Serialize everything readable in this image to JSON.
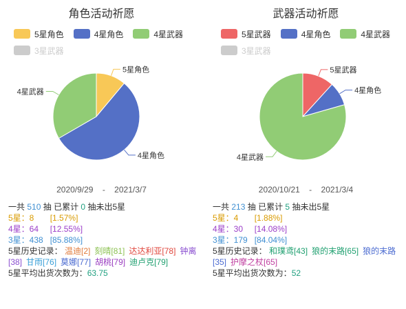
{
  "colors": {
    "five_char": "#f8c857",
    "four_char": "#5470c6",
    "four_weapon": "#91cc75",
    "five_weapon": "#ee6666",
    "three_star": "#cccccc"
  },
  "chart_data": [
    {
      "type": "pie",
      "title": "角色活动祈愿",
      "legend": [
        "5星角色",
        "4星角色",
        "4星武器",
        "3星武器"
      ],
      "legend_disabled": [
        "3星武器"
      ],
      "legend_placement": "top",
      "series": [
        {
          "name": "5星角色",
          "value": 8,
          "color_key": "five_char"
        },
        {
          "name": "4星角色",
          "value": 40,
          "color_key": "four_char"
        },
        {
          "name": "4星武器",
          "value": 24,
          "color_key": "four_weapon"
        }
      ]
    },
    {
      "type": "pie",
      "title": "武器活动祈愿",
      "legend": [
        "5星武器",
        "4星角色",
        "4星武器",
        "3星武器"
      ],
      "legend_disabled": [
        "3星武器"
      ],
      "legend_placement": "top",
      "series": [
        {
          "name": "5星武器",
          "value": 4,
          "color_key": "five_weapon"
        },
        {
          "name": "4星角色",
          "value": 3,
          "color_key": "four_char"
        },
        {
          "name": "4星武器",
          "value": 27,
          "color_key": "four_weapon"
        }
      ]
    }
  ],
  "left": {
    "date_start": "2020/9/29",
    "date_sep": "-",
    "date_end": "2021/3/7",
    "total_prefix": "一共",
    "total": "510",
    "total_suffix": "抽  已累计",
    "pity": "0",
    "pity_suffix": "抽未出5星",
    "five_label": "5星：8",
    "five_pct": "[1.57%]",
    "four_label": "4星：64",
    "four_pct": "[12.55%]",
    "three_label": "3星：438",
    "three_pct": "[85.88%]",
    "history_label": "5星历史记录：",
    "history": [
      {
        "text": "温迪[2]",
        "color": "#e07a3a"
      },
      {
        "text": "刻晴[81]",
        "color": "#8cc152"
      },
      {
        "text": "达达利亚[78]",
        "color": "#e0463c"
      },
      {
        "text": "钟离[38]",
        "color": "#8a4fd0"
      },
      {
        "text": "甘雨[76]",
        "color": "#3aa0d8"
      },
      {
        "text": "莫娜[77]",
        "color": "#4a6ad0"
      },
      {
        "text": "胡桃[79]",
        "color": "#9a3ec0"
      },
      {
        "text": "迪卢克[79]",
        "color": "#20a070"
      }
    ],
    "avg_label": "5星平均出货次数为：",
    "avg": "63.75"
  },
  "right": {
    "date_start": "2020/10/21",
    "date_sep": "-",
    "date_end": "2021/3/4",
    "total_prefix": "一共",
    "total": "213",
    "total_suffix": "抽  已累计",
    "pity": "5",
    "pity_suffix": "抽未出5星",
    "five_label": "5星：4",
    "five_pct": "[1.88%]",
    "four_label": "4星：30",
    "four_pct": "[14.08%]",
    "three_label": "3星：179",
    "three_pct": "[84.04%]",
    "history_label": "5星历史记录：",
    "history": [
      {
        "text": "和璞鸢[43]",
        "color": "#20a070"
      },
      {
        "text": "狼的末路[65]",
        "color": "#20a070"
      },
      {
        "text": "狼的末路[35]",
        "color": "#4a6ad0"
      },
      {
        "text": "护摩之杖[65]",
        "color": "#c040a0"
      }
    ],
    "avg_label": "5星平均出货次数为：",
    "avg": "52"
  }
}
